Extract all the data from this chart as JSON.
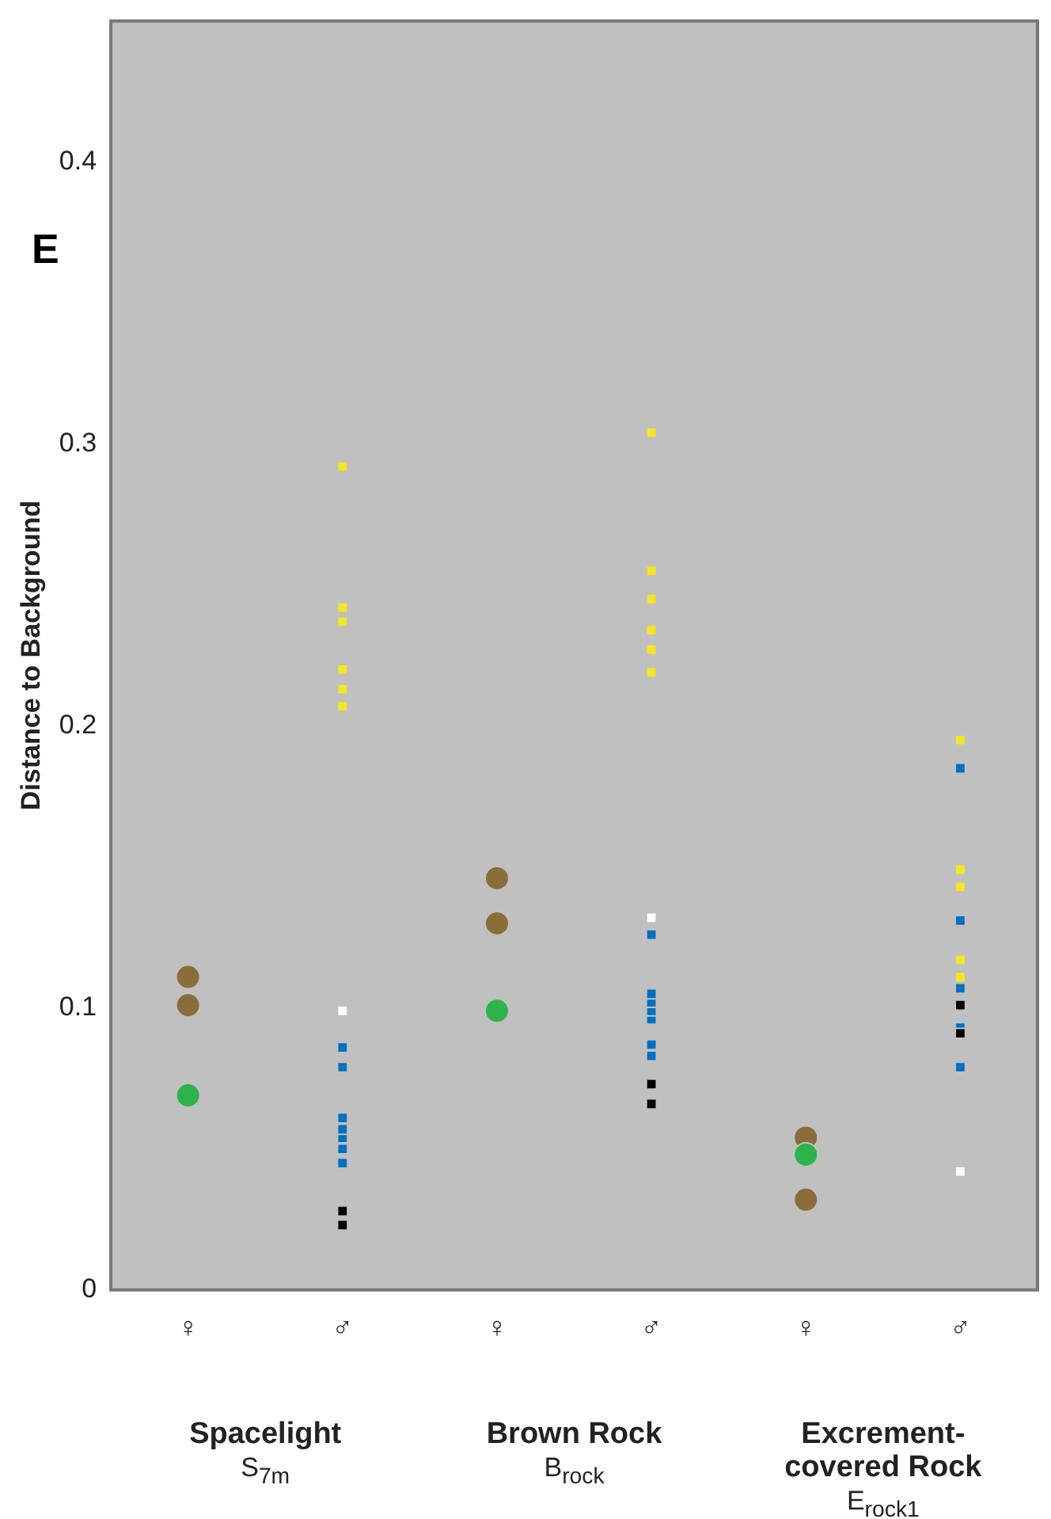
{
  "chart_data": {
    "type": "scatter",
    "title": "E",
    "ylabel": "Distance to Background",
    "categories": [
      "♀",
      "♂",
      "♀",
      "♂",
      "♀",
      "♂"
    ],
    "ylim": [
      0,
      0.45
    ],
    "yticks": [
      0,
      0.1,
      0.2,
      0.3,
      0.4
    ],
    "grid": false,
    "legend": false,
    "annotations": [
      "Spacelight\nS$_{7m}$",
      "Brown Rock\nB$_{rock}$",
      "Excrement-covered Rock\nE$_{rock1}$"
    ],
    "series": [
      {
        "color": "#000000",
        "marker": "square",
        "values": [
          null,
          0.028,
          null,
          0.073,
          null,
          0.101
        ]
      },
      {
        "color": "#000000",
        "marker": "square",
        "values": [
          null,
          0.023,
          null,
          0.066,
          null,
          0.091
        ]
      },
      {
        "color": "#0070c0",
        "marker": "square",
        "values": [
          null,
          0.061,
          null,
          0.087,
          null,
          0.131
        ]
      },
      {
        "color": "#0070c0",
        "marker": "square",
        "values": [
          null,
          0.057,
          null,
          0.083,
          null,
          null
        ]
      },
      {
        "color": "#0070c0",
        "marker": "square",
        "values": [
          null,
          0.054,
          null,
          null,
          null,
          null
        ]
      },
      {
        "color": "#0070c0",
        "marker": "square",
        "values": [
          null,
          0.05,
          null,
          null,
          null,
          null
        ]
      },
      {
        "color": "#0070c0",
        "marker": "square",
        "values": [
          null,
          0.045,
          null,
          null,
          null,
          null
        ]
      },
      {
        "color": "#0070c0",
        "marker": "square",
        "values": [
          null,
          0.086,
          null,
          0.126,
          null,
          0.185
        ]
      },
      {
        "color": "#0070c0",
        "marker": "square",
        "values": [
          null,
          0.079,
          null,
          0.105,
          null,
          0.107
        ]
      },
      {
        "color": "#0070c0",
        "marker": "square",
        "values": [
          null,
          null,
          null,
          0.102,
          null,
          0.093
        ]
      },
      {
        "color": "#0070c0",
        "marker": "square",
        "values": [
          null,
          null,
          null,
          0.099,
          null,
          0.079
        ]
      },
      {
        "color": "#0070c0",
        "marker": "square",
        "values": [
          null,
          null,
          null,
          0.096,
          null,
          null
        ]
      },
      {
        "color": "#ffffff",
        "marker": "square",
        "values": [
          null,
          0.099,
          null,
          0.132,
          null,
          0.042
        ]
      },
      {
        "color": "#f5e621",
        "marker": "square",
        "values": [
          null,
          0.242,
          null,
          0.255,
          null,
          0.149
        ]
      },
      {
        "color": "#f5e621",
        "marker": "square",
        "values": [
          null,
          0.237,
          null,
          0.245,
          null,
          0.143
        ]
      },
      {
        "color": "#f5e621",
        "marker": "square",
        "values": [
          null,
          0.22,
          null,
          0.234,
          null,
          0.117
        ]
      },
      {
        "color": "#f5e621",
        "marker": "square",
        "values": [
          null,
          0.213,
          null,
          0.227,
          null,
          0.111
        ]
      },
      {
        "color": "#f5e621",
        "marker": "square",
        "values": [
          null,
          0.207,
          null,
          0.219,
          null,
          null
        ]
      },
      {
        "color": "#f5e621",
        "marker": "square",
        "values": [
          null,
          0.292,
          null,
          0.304,
          null,
          0.195
        ]
      },
      {
        "color": "#2db34a",
        "marker": "circle",
        "values": [
          0.069,
          null,
          0.099,
          null,
          0.048,
          null
        ]
      },
      {
        "color": "#8b6d3a",
        "marker": "circle",
        "values": [
          0.101,
          null,
          0.13,
          null,
          0.032,
          null
        ]
      },
      {
        "color": "#8b6d3a",
        "marker": "circle",
        "values": [
          0.111,
          null,
          0.146,
          null,
          0.054,
          null
        ]
      }
    ]
  }
}
